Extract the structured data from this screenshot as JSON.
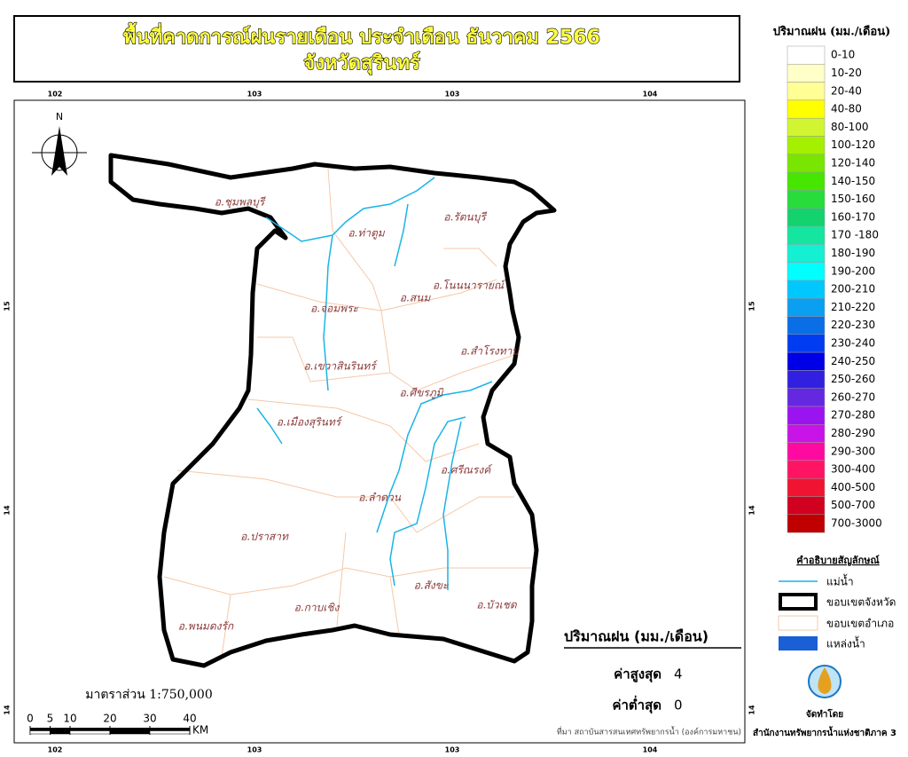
{
  "header": {
    "title_line1": "พื้นที่คาดการณ์ฝนรายเดือน ประจำเดือน ธันวาคม 2566",
    "title_line2": "จังหวัดสุรินทร์"
  },
  "grid_labels": {
    "top": [
      "102",
      "103",
      "103",
      "104"
    ],
    "bottom": [
      "102",
      "103",
      "103",
      "104"
    ],
    "left": [
      "15",
      "14",
      "14"
    ],
    "right": [
      "15",
      "14",
      "14"
    ]
  },
  "north": "N",
  "districts": [
    "อ.ชุมพลบุรี",
    "อ.ท่าตูม",
    "อ.รัตนบุรี",
    "อ.โนนนารายณ์",
    "อ.สนม",
    "อ.จอมพระ",
    "อ.สำโรงทาบ",
    "อ.เขวาสินรินทร์",
    "อ.ศีขรภูมิ",
    "อ.เมืองสุรินทร์",
    "อ.ศรีณรงค์",
    "อ.ลำดวน",
    "อ.ปราสาท",
    "อ.สังขะ",
    "อ.บัวเชด",
    "อ.กาบเชิง",
    "อ.พนมดงรัก"
  ],
  "rain_legend": {
    "title": "ปริมาณฝน (มม./เดือน)",
    "classes": [
      {
        "label": "0-10",
        "color": "#ffffff"
      },
      {
        "label": "10-20",
        "color": "#ffffc8"
      },
      {
        "label": "20-40",
        "color": "#ffff96"
      },
      {
        "label": "40-80",
        "color": "#ffff00"
      },
      {
        "label": "80-100",
        "color": "#d2f532"
      },
      {
        "label": "100-120",
        "color": "#a5f000"
      },
      {
        "label": "120-140",
        "color": "#78e600"
      },
      {
        "label": "140-150",
        "color": "#46e600"
      },
      {
        "label": "150-160",
        "color": "#28dc3c"
      },
      {
        "label": "160-170",
        "color": "#14d26e"
      },
      {
        "label": "170 -180",
        "color": "#14e6a0"
      },
      {
        "label": "180-190",
        "color": "#14f0d2"
      },
      {
        "label": "190-200",
        "color": "#00ffff"
      },
      {
        "label": "200-210",
        "color": "#00c8ff"
      },
      {
        "label": "210-220",
        "color": "#0a9ff0"
      },
      {
        "label": "220-230",
        "color": "#0a6ee6"
      },
      {
        "label": "230-240",
        "color": "#003cf0"
      },
      {
        "label": "240-250",
        "color": "#0000e6"
      },
      {
        "label": "250-260",
        "color": "#3220e0"
      },
      {
        "label": "260-270",
        "color": "#6428e0"
      },
      {
        "label": "270-280",
        "color": "#9a14f0"
      },
      {
        "label": "280-290",
        "color": "#c814e6"
      },
      {
        "label": "290-300",
        "color": "#ff0aa0"
      },
      {
        "label": "300-400",
        "color": "#ff1464"
      },
      {
        "label": "400-500",
        "color": "#f01432"
      },
      {
        "label": "500-700",
        "color": "#d20020"
      },
      {
        "label": "700-3000",
        "color": "#c00000"
      }
    ]
  },
  "symbol_legend": {
    "title": "คำอธิบายสัญลักษณ์",
    "items": [
      "แม่น้ำ",
      "ขอบเขตจังหวัด",
      "ขอบเขตอำเภอ",
      "แหล่งน้ำ"
    ]
  },
  "stats": {
    "title": "ปริมาณฝน (มม./เดือน)",
    "max_label": "ค่าสูงสุด",
    "max": 4,
    "min_label": "ค่าต่ำสุด",
    "min": 0
  },
  "scale": {
    "text": "มาตราส่วน 1:750,000",
    "ticks": [
      0,
      5,
      10,
      20,
      30,
      40
    ],
    "unit": "KM"
  },
  "source": "ที่มา  สถาบันสารสนเทศทรัพยากรน้ำ (องค์การมหาชน)",
  "credit": {
    "line1": "จัดทำโดย",
    "line2": "สำนักงานทรัพยากรน้ำแห่งชาติภาค 3"
  }
}
